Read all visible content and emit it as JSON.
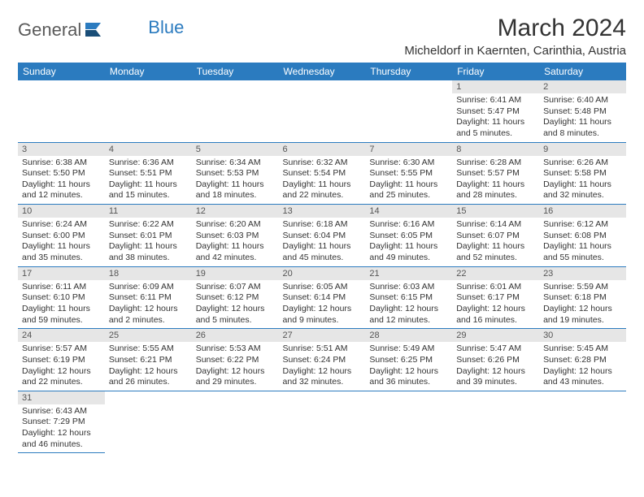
{
  "logo": {
    "general": "General",
    "blue": "Blue"
  },
  "title": "March 2024",
  "location": "Micheldorf in Kaernten, Carinthia, Austria",
  "colors": {
    "header_bg": "#2b7bbf",
    "header_fg": "#ffffff",
    "daynum_bg": "#e6e6e6",
    "daynum_fg": "#555555",
    "text": "#333333",
    "logo_gray": "#5a5a5a",
    "logo_blue": "#2b7bbf",
    "row_border": "#2b7bbf"
  },
  "weekdays": [
    "Sunday",
    "Monday",
    "Tuesday",
    "Wednesday",
    "Thursday",
    "Friday",
    "Saturday"
  ],
  "weeks": [
    [
      null,
      null,
      null,
      null,
      null,
      {
        "n": "1",
        "sr": "6:41 AM",
        "ss": "5:47 PM",
        "dl": "11 hours and 5 minutes."
      },
      {
        "n": "2",
        "sr": "6:40 AM",
        "ss": "5:48 PM",
        "dl": "11 hours and 8 minutes."
      }
    ],
    [
      {
        "n": "3",
        "sr": "6:38 AM",
        "ss": "5:50 PM",
        "dl": "11 hours and 12 minutes."
      },
      {
        "n": "4",
        "sr": "6:36 AM",
        "ss": "5:51 PM",
        "dl": "11 hours and 15 minutes."
      },
      {
        "n": "5",
        "sr": "6:34 AM",
        "ss": "5:53 PM",
        "dl": "11 hours and 18 minutes."
      },
      {
        "n": "6",
        "sr": "6:32 AM",
        "ss": "5:54 PM",
        "dl": "11 hours and 22 minutes."
      },
      {
        "n": "7",
        "sr": "6:30 AM",
        "ss": "5:55 PM",
        "dl": "11 hours and 25 minutes."
      },
      {
        "n": "8",
        "sr": "6:28 AM",
        "ss": "5:57 PM",
        "dl": "11 hours and 28 minutes."
      },
      {
        "n": "9",
        "sr": "6:26 AM",
        "ss": "5:58 PM",
        "dl": "11 hours and 32 minutes."
      }
    ],
    [
      {
        "n": "10",
        "sr": "6:24 AM",
        "ss": "6:00 PM",
        "dl": "11 hours and 35 minutes."
      },
      {
        "n": "11",
        "sr": "6:22 AM",
        "ss": "6:01 PM",
        "dl": "11 hours and 38 minutes."
      },
      {
        "n": "12",
        "sr": "6:20 AM",
        "ss": "6:03 PM",
        "dl": "11 hours and 42 minutes."
      },
      {
        "n": "13",
        "sr": "6:18 AM",
        "ss": "6:04 PM",
        "dl": "11 hours and 45 minutes."
      },
      {
        "n": "14",
        "sr": "6:16 AM",
        "ss": "6:05 PM",
        "dl": "11 hours and 49 minutes."
      },
      {
        "n": "15",
        "sr": "6:14 AM",
        "ss": "6:07 PM",
        "dl": "11 hours and 52 minutes."
      },
      {
        "n": "16",
        "sr": "6:12 AM",
        "ss": "6:08 PM",
        "dl": "11 hours and 55 minutes."
      }
    ],
    [
      {
        "n": "17",
        "sr": "6:11 AM",
        "ss": "6:10 PM",
        "dl": "11 hours and 59 minutes."
      },
      {
        "n": "18",
        "sr": "6:09 AM",
        "ss": "6:11 PM",
        "dl": "12 hours and 2 minutes."
      },
      {
        "n": "19",
        "sr": "6:07 AM",
        "ss": "6:12 PM",
        "dl": "12 hours and 5 minutes."
      },
      {
        "n": "20",
        "sr": "6:05 AM",
        "ss": "6:14 PM",
        "dl": "12 hours and 9 minutes."
      },
      {
        "n": "21",
        "sr": "6:03 AM",
        "ss": "6:15 PM",
        "dl": "12 hours and 12 minutes."
      },
      {
        "n": "22",
        "sr": "6:01 AM",
        "ss": "6:17 PM",
        "dl": "12 hours and 16 minutes."
      },
      {
        "n": "23",
        "sr": "5:59 AM",
        "ss": "6:18 PM",
        "dl": "12 hours and 19 minutes."
      }
    ],
    [
      {
        "n": "24",
        "sr": "5:57 AM",
        "ss": "6:19 PM",
        "dl": "12 hours and 22 minutes."
      },
      {
        "n": "25",
        "sr": "5:55 AM",
        "ss": "6:21 PM",
        "dl": "12 hours and 26 minutes."
      },
      {
        "n": "26",
        "sr": "5:53 AM",
        "ss": "6:22 PM",
        "dl": "12 hours and 29 minutes."
      },
      {
        "n": "27",
        "sr": "5:51 AM",
        "ss": "6:24 PM",
        "dl": "12 hours and 32 minutes."
      },
      {
        "n": "28",
        "sr": "5:49 AM",
        "ss": "6:25 PM",
        "dl": "12 hours and 36 minutes."
      },
      {
        "n": "29",
        "sr": "5:47 AM",
        "ss": "6:26 PM",
        "dl": "12 hours and 39 minutes."
      },
      {
        "n": "30",
        "sr": "5:45 AM",
        "ss": "6:28 PM",
        "dl": "12 hours and 43 minutes."
      }
    ],
    [
      {
        "n": "31",
        "sr": "6:43 AM",
        "ss": "7:29 PM",
        "dl": "12 hours and 46 minutes."
      },
      null,
      null,
      null,
      null,
      null,
      null
    ]
  ],
  "labels": {
    "sunrise": "Sunrise:",
    "sunset": "Sunset:",
    "daylight": "Daylight:"
  }
}
